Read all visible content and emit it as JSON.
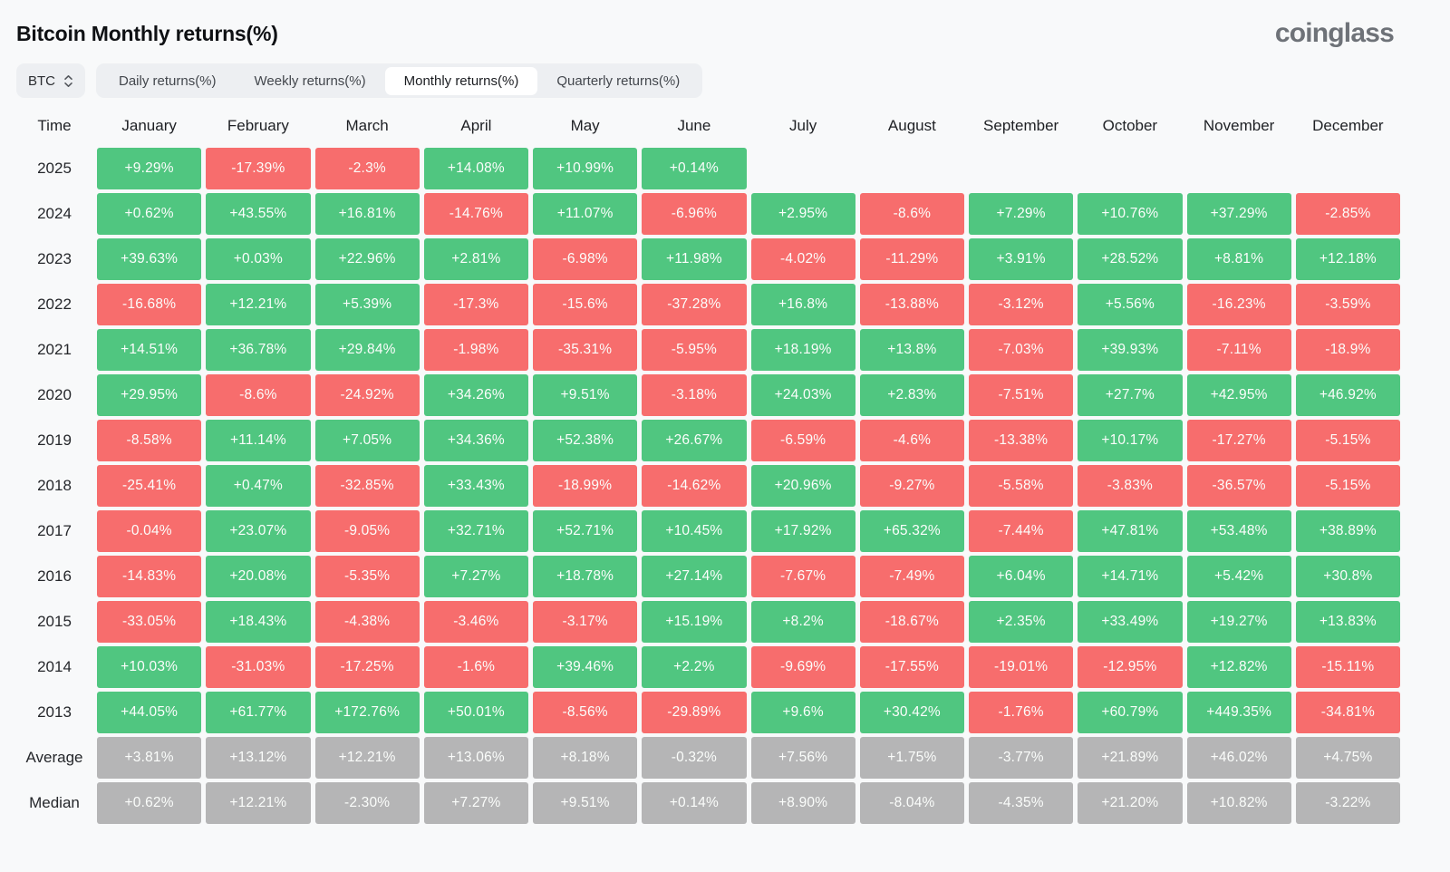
{
  "page": {
    "title": "Bitcoin Monthly returns(%)",
    "brand": "coinglass"
  },
  "controls": {
    "symbol": "BTC",
    "tabs": [
      {
        "label": "Daily returns(%)",
        "active": false
      },
      {
        "label": "Weekly returns(%)",
        "active": false
      },
      {
        "label": "Monthly returns(%)",
        "active": true
      },
      {
        "label": "Quarterly returns(%)",
        "active": false
      }
    ]
  },
  "chart_data": {
    "type": "heatmap",
    "title": "Bitcoin Monthly returns(%)",
    "row_header": "Time",
    "columns": [
      "January",
      "February",
      "March",
      "April",
      "May",
      "June",
      "July",
      "August",
      "September",
      "October",
      "November",
      "December"
    ],
    "rows": [
      {
        "label": "2025",
        "summary": false,
        "values": [
          "+9.29%",
          "-17.39%",
          "-2.3%",
          "+14.08%",
          "+10.99%",
          "+0.14%",
          null,
          null,
          null,
          null,
          null,
          null
        ]
      },
      {
        "label": "2024",
        "summary": false,
        "values": [
          "+0.62%",
          "+43.55%",
          "+16.81%",
          "-14.76%",
          "+11.07%",
          "-6.96%",
          "+2.95%",
          "-8.6%",
          "+7.29%",
          "+10.76%",
          "+37.29%",
          "-2.85%"
        ]
      },
      {
        "label": "2023",
        "summary": false,
        "values": [
          "+39.63%",
          "+0.03%",
          "+22.96%",
          "+2.81%",
          "-6.98%",
          "+11.98%",
          "-4.02%",
          "-11.29%",
          "+3.91%",
          "+28.52%",
          "+8.81%",
          "+12.18%"
        ]
      },
      {
        "label": "2022",
        "summary": false,
        "values": [
          "-16.68%",
          "+12.21%",
          "+5.39%",
          "-17.3%",
          "-15.6%",
          "-37.28%",
          "+16.8%",
          "-13.88%",
          "-3.12%",
          "+5.56%",
          "-16.23%",
          "-3.59%"
        ]
      },
      {
        "label": "2021",
        "summary": false,
        "values": [
          "+14.51%",
          "+36.78%",
          "+29.84%",
          "-1.98%",
          "-35.31%",
          "-5.95%",
          "+18.19%",
          "+13.8%",
          "-7.03%",
          "+39.93%",
          "-7.11%",
          "-18.9%"
        ]
      },
      {
        "label": "2020",
        "summary": false,
        "values": [
          "+29.95%",
          "-8.6%",
          "-24.92%",
          "+34.26%",
          "+9.51%",
          "-3.18%",
          "+24.03%",
          "+2.83%",
          "-7.51%",
          "+27.7%",
          "+42.95%",
          "+46.92%"
        ]
      },
      {
        "label": "2019",
        "summary": false,
        "values": [
          "-8.58%",
          "+11.14%",
          "+7.05%",
          "+34.36%",
          "+52.38%",
          "+26.67%",
          "-6.59%",
          "-4.6%",
          "-13.38%",
          "+10.17%",
          "-17.27%",
          "-5.15%"
        ]
      },
      {
        "label": "2018",
        "summary": false,
        "values": [
          "-25.41%",
          "+0.47%",
          "-32.85%",
          "+33.43%",
          "-18.99%",
          "-14.62%",
          "+20.96%",
          "-9.27%",
          "-5.58%",
          "-3.83%",
          "-36.57%",
          "-5.15%"
        ]
      },
      {
        "label": "2017",
        "summary": false,
        "values": [
          "-0.04%",
          "+23.07%",
          "-9.05%",
          "+32.71%",
          "+52.71%",
          "+10.45%",
          "+17.92%",
          "+65.32%",
          "-7.44%",
          "+47.81%",
          "+53.48%",
          "+38.89%"
        ]
      },
      {
        "label": "2016",
        "summary": false,
        "values": [
          "-14.83%",
          "+20.08%",
          "-5.35%",
          "+7.27%",
          "+18.78%",
          "+27.14%",
          "-7.67%",
          "-7.49%",
          "+6.04%",
          "+14.71%",
          "+5.42%",
          "+30.8%"
        ]
      },
      {
        "label": "2015",
        "summary": false,
        "values": [
          "-33.05%",
          "+18.43%",
          "-4.38%",
          "-3.46%",
          "-3.17%",
          "+15.19%",
          "+8.2%",
          "-18.67%",
          "+2.35%",
          "+33.49%",
          "+19.27%",
          "+13.83%"
        ]
      },
      {
        "label": "2014",
        "summary": false,
        "values": [
          "+10.03%",
          "-31.03%",
          "-17.25%",
          "-1.6%",
          "+39.46%",
          "+2.2%",
          "-9.69%",
          "-17.55%",
          "-19.01%",
          "-12.95%",
          "+12.82%",
          "-15.11%"
        ]
      },
      {
        "label": "2013",
        "summary": false,
        "values": [
          "+44.05%",
          "+61.77%",
          "+172.76%",
          "+50.01%",
          "-8.56%",
          "-29.89%",
          "+9.6%",
          "+30.42%",
          "-1.76%",
          "+60.79%",
          "+449.35%",
          "-34.81%"
        ]
      },
      {
        "label": "Average",
        "summary": true,
        "values": [
          "+3.81%",
          "+13.12%",
          "+12.21%",
          "+13.06%",
          "+8.18%",
          "-0.32%",
          "+7.56%",
          "+1.75%",
          "-3.77%",
          "+21.89%",
          "+46.02%",
          "+4.75%"
        ]
      },
      {
        "label": "Median",
        "summary": true,
        "values": [
          "+0.62%",
          "+12.21%",
          "-2.30%",
          "+7.27%",
          "+9.51%",
          "+0.14%",
          "+8.90%",
          "-8.04%",
          "-4.35%",
          "+21.20%",
          "+10.82%",
          "-3.22%"
        ]
      }
    ],
    "colors": {
      "positive": "#50c680",
      "negative": "#f76d6d",
      "summary": "#b5b5b6"
    }
  }
}
